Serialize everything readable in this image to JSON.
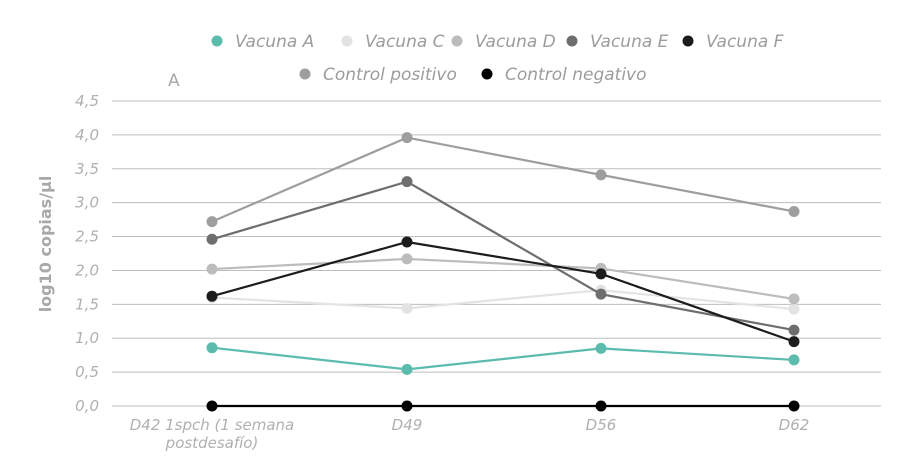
{
  "chart_data": {
    "type": "line",
    "panel_label": "A",
    "ylabel": "log10 copias/µl",
    "xlabel": "",
    "ylim": [
      0,
      4.5
    ],
    "yticks": [
      "0,0",
      "0,5",
      "1,0",
      "1,5",
      "2,0",
      "2,5",
      "3,0",
      "3,5",
      "4,0",
      "4,5"
    ],
    "grid": true,
    "legend_placement": "top",
    "categories": [
      [
        "D42 1spch (1 semana",
        "postdesafío)"
      ],
      [
        "D49"
      ],
      [
        "D56"
      ],
      [
        "D62"
      ]
    ],
    "series": [
      {
        "name": "Vacuna A",
        "color": "#5bbcad",
        "values": [
          0.86,
          0.54,
          0.85,
          0.68
        ]
      },
      {
        "name": "Vacuna C",
        "color": "#e3e3e3",
        "values": [
          1.6,
          1.44,
          1.71,
          1.43
        ]
      },
      {
        "name": "Vacuna D",
        "color": "#bcbcbc",
        "values": [
          2.02,
          2.17,
          2.03,
          1.58
        ]
      },
      {
        "name": "Vacuna E",
        "color": "#6e6e6e",
        "values": [
          2.46,
          3.31,
          1.65,
          1.12
        ]
      },
      {
        "name": "Vacuna F",
        "color": "#1c1c1c",
        "values": [
          1.62,
          2.42,
          1.95,
          0.95
        ]
      },
      {
        "name": "Control positivo",
        "color": "#9e9e9e",
        "values": [
          2.72,
          3.96,
          3.41,
          2.87
        ]
      },
      {
        "name": "Control negativo",
        "color": "#000000",
        "values": [
          0.0,
          0.0,
          0.0,
          0.0
        ]
      }
    ]
  }
}
